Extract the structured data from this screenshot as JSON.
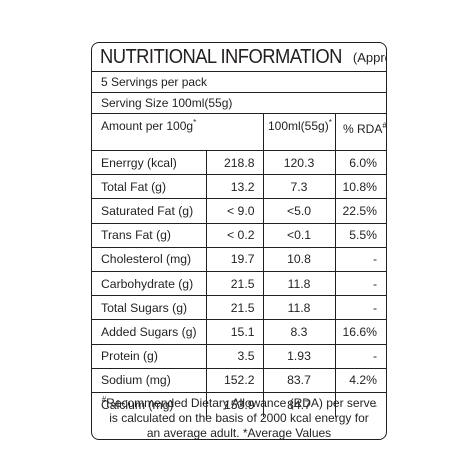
{
  "panel": {
    "title": "NUTRITIONAL INFORMATION",
    "title_suffix": "(Approx)",
    "servings_per_pack": "5 Servings per pack",
    "serving_size": "Serving Size 100ml(55g)"
  },
  "header": {
    "amount_label": "Amount per 100g",
    "amount_mark": "*",
    "per_serve_label": "100ml(55g)",
    "per_serve_mark": "*",
    "rda_label": "% RDA",
    "rda_mark": "#"
  },
  "rows": [
    {
      "name": "Enerrgy (kcal)",
      "per100": "218.8",
      "perServe": "120.3",
      "rda": "6.0%"
    },
    {
      "name": "Total Fat (g)",
      "per100": "13.2",
      "perServe": "7.3",
      "rda": "10.8%"
    },
    {
      "name": "Saturated Fat (g)",
      "per100": "< 9.0",
      "perServe": "<5.0",
      "rda": "22.5%"
    },
    {
      "name": "Trans Fat (g)",
      "per100": "< 0.2",
      "perServe": "<0.1",
      "rda": "5.5%"
    },
    {
      "name": "Cholesterol (mg)",
      "per100": "19.7",
      "perServe": "10.8",
      "rda": "-"
    },
    {
      "name": "Carbohydrate (g)",
      "per100": "21.5",
      "perServe": "11.8",
      "rda": "-"
    },
    {
      "name": "Total Sugars (g)",
      "per100": "21.5",
      "perServe": "11.8",
      "rda": "-"
    },
    {
      "name": "Added Sugars (g)",
      "per100": "15.1",
      "perServe": "8.3",
      "rda": "16.6%"
    },
    {
      "name": "Protein (g)",
      "per100": "3.5",
      "perServe": "1.93",
      "rda": "-"
    },
    {
      "name": "Sodium (mg)",
      "per100": "152.2",
      "perServe": "83.7",
      "rda": "4.2%"
    },
    {
      "name": "Calcium (mg)",
      "per100": "153.9",
      "perServe": "84.7",
      "rda": "-"
    }
  ],
  "footnote": {
    "mark": "#",
    "line1": "Recommended Dietary Allowance (RDA) per serve",
    "line2": "is calculated on the basis of 2000 kcal energy for",
    "line3": "an average adult. *Average Values"
  },
  "colors": {
    "ink": "#231f20",
    "background": "#ffffff"
  }
}
